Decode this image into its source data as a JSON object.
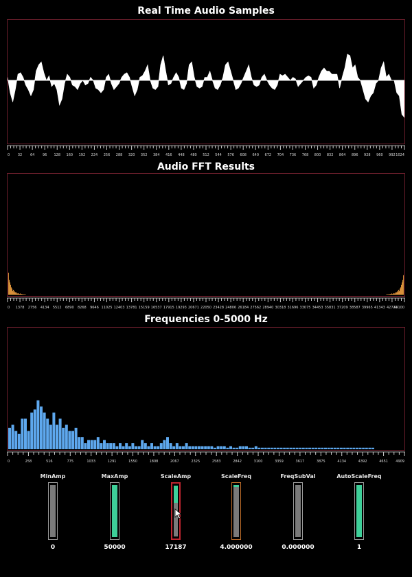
{
  "titles": {
    "samples": "Real Time Audio Samples",
    "fft": "Audio FFT Results",
    "freq": "Frequencies 0-5000 Hz"
  },
  "colors": {
    "panel_border": "#6b1e2c",
    "waveform": "#ffffff",
    "fft_bars": "#f0a040",
    "freq_bars": "#5ea8ee",
    "slider_fill": "#3ecf99",
    "slider_active_border": "#c0242f",
    "slider_hover_border": "#c06e2a"
  },
  "chart_data": [
    {
      "type": "area",
      "title": "Real Time Audio Samples",
      "xlim": [
        0,
        1024
      ],
      "ticks": [
        "0",
        "32",
        "64",
        "96",
        "128",
        "160",
        "192",
        "224",
        "256",
        "288",
        "320",
        "352",
        "384",
        "416",
        "448",
        "480",
        "512",
        "544",
        "576",
        "608",
        "640",
        "672",
        "704",
        "736",
        "768",
        "800",
        "832",
        "864",
        "896",
        "928",
        "960",
        "992",
        "1024"
      ],
      "y": [
        0.02,
        -0.08,
        -0.14,
        -0.06,
        0.04,
        0.05,
        0.02,
        -0.03,
        -0.06,
        -0.1,
        -0.06,
        0.06,
        0.1,
        0.12,
        0.05,
        0.0,
        0.03,
        -0.04,
        -0.02,
        -0.06,
        -0.16,
        -0.12,
        -0.02,
        0.04,
        0.02,
        -0.03,
        -0.04,
        -0.06,
        -0.02,
        0.0,
        -0.03,
        -0.02,
        0.02,
        0.0,
        -0.05,
        -0.06,
        -0.08,
        -0.06,
        0.02,
        0.04,
        -0.02,
        -0.06,
        -0.04,
        -0.02,
        0.02,
        0.04,
        0.05,
        0.02,
        -0.04,
        -0.1,
        -0.06,
        0.02,
        0.03,
        0.06,
        0.1,
        0.0,
        -0.05,
        -0.06,
        -0.04,
        0.1,
        0.16,
        0.06,
        -0.03,
        -0.02,
        0.02,
        0.05,
        0.02,
        -0.05,
        -0.06,
        -0.02,
        0.1,
        0.12,
        0.02,
        -0.04,
        -0.05,
        -0.04,
        0.02,
        0.02,
        0.06,
        0.0,
        -0.05,
        -0.06,
        -0.03,
        0.02,
        0.1,
        0.12,
        0.06,
        0.0,
        -0.06,
        -0.05,
        -0.02,
        0.02,
        0.06,
        0.1,
        0.02,
        -0.03,
        -0.04,
        -0.03,
        0.02,
        0.04,
        0.0,
        -0.03,
        -0.05,
        -0.06,
        -0.03,
        0.04,
        0.03,
        0.04,
        0.02,
        0.0,
        0.02,
        0.01,
        -0.04,
        -0.02,
        0.0,
        0.02,
        0.03,
        0.02,
        -0.05,
        -0.03,
        0.02,
        0.06,
        0.08,
        0.06,
        0.06,
        0.04,
        0.04,
        0.04,
        -0.05,
        0.02,
        0.08,
        0.17,
        0.16,
        0.08,
        0.1,
        0.02,
        0.0,
        -0.06,
        -0.12,
        -0.14,
        -0.1,
        -0.08,
        -0.02,
        0.0,
        0.08,
        0.12,
        0.02,
        0.04,
        0.0,
        0.0,
        -0.08,
        -0.1,
        -0.22,
        -0.24
      ],
      "ylim": [
        -0.4,
        0.4
      ]
    },
    {
      "type": "bar",
      "title": "Audio FFT Results",
      "xlim": [
        0,
        44100
      ],
      "ticks": [
        "0",
        "1378",
        "2756",
        "4134",
        "5512",
        "6890",
        "8268",
        "9646",
        "11025",
        "12403",
        "13781",
        "15159",
        "16537",
        "17915",
        "19293",
        "20671",
        "22050",
        "23428",
        "24806",
        "26184",
        "27562",
        "28940",
        "30318",
        "31696",
        "33075",
        "34453",
        "35831",
        "37209",
        "38587",
        "39965",
        "41343",
        "42721",
        "44100"
      ],
      "values_low": [
        0.18,
        0.12,
        0.1,
        0.08,
        0.06,
        0.05,
        0.03,
        0.04,
        0.02,
        0.03,
        0.02,
        0.01,
        0.02,
        0.01,
        0.01,
        0.01,
        0.005,
        0.01,
        0.005,
        0.005,
        0.004,
        0.003,
        0.003,
        0.003,
        0.002,
        0.002
      ],
      "values_high": [
        0.002,
        0.002,
        0.003,
        0.003,
        0.003,
        0.004,
        0.005,
        0.005,
        0.01,
        0.005,
        0.01,
        0.01,
        0.01,
        0.02,
        0.01,
        0.02,
        0.03,
        0.02,
        0.04,
        0.03,
        0.05,
        0.06,
        0.08,
        0.1,
        0.12,
        0.16
      ],
      "ylim": [
        0,
        1
      ]
    },
    {
      "type": "bar",
      "title": "Frequencies 0-5000 Hz",
      "xlim": [
        0,
        4909
      ],
      "ticks": [
        "0",
        "258",
        "516",
        "775",
        "1033",
        "1291",
        "1550",
        "1808",
        "2067",
        "2325",
        "2583",
        "2842",
        "3100",
        "3359",
        "3617",
        "3875",
        "4134",
        "4392",
        "4651",
        "4909"
      ],
      "values": [
        0.07,
        0.08,
        0.06,
        0.05,
        0.1,
        0.1,
        0.06,
        0.12,
        0.13,
        0.16,
        0.14,
        0.12,
        0.1,
        0.08,
        0.12,
        0.08,
        0.1,
        0.07,
        0.08,
        0.06,
        0.06,
        0.07,
        0.04,
        0.04,
        0.02,
        0.03,
        0.03,
        0.03,
        0.04,
        0.02,
        0.03,
        0.02,
        0.02,
        0.02,
        0.01,
        0.02,
        0.01,
        0.02,
        0.01,
        0.02,
        0.01,
        0.01,
        0.03,
        0.02,
        0.01,
        0.02,
        0.01,
        0.01,
        0.02,
        0.03,
        0.04,
        0.02,
        0.01,
        0.02,
        0.01,
        0.01,
        0.02,
        0.01,
        0.01,
        0.01,
        0.01,
        0.01,
        0.01,
        0.01,
        0.01,
        0.005,
        0.01,
        0.01,
        0.01,
        0.005,
        0.01,
        0.005,
        0.005,
        0.01,
        0.01,
        0.01,
        0.005,
        0.005,
        0.01,
        0.005,
        0.005,
        0.005,
        0.005,
        0.005,
        0.005,
        0.005,
        0.005,
        0.005,
        0.005,
        0.005,
        0.005,
        0.005,
        0.005,
        0.005,
        0.005,
        0.005,
        0.005,
        0.005,
        0.005,
        0.005,
        0.005,
        0.005,
        0.005,
        0.005,
        0.005,
        0.005,
        0.005,
        0.005,
        0.005,
        0.005,
        0.005,
        0.005,
        0.005,
        0.005,
        0.005,
        0.005
      ],
      "ylim": [
        0,
        0.4
      ]
    }
  ],
  "sliders": [
    {
      "label": "MinAmp",
      "value": "0",
      "fill": 0.0,
      "state": "normal"
    },
    {
      "label": "MaxAmp",
      "value": "50000",
      "fill": 1.0,
      "state": "normal"
    },
    {
      "label": "ScaleAmp",
      "value": "17187",
      "fill": 0.34,
      "state": "active"
    },
    {
      "label": "ScaleFreq",
      "value": "4.000000",
      "fill": 0.04,
      "state": "hover"
    },
    {
      "label": "FreqSubVal",
      "value": "0.000000",
      "fill": 0.0,
      "state": "normal"
    },
    {
      "label": "AutoScaleFreq",
      "value": "1",
      "fill": 1.0,
      "state": "normal"
    }
  ]
}
